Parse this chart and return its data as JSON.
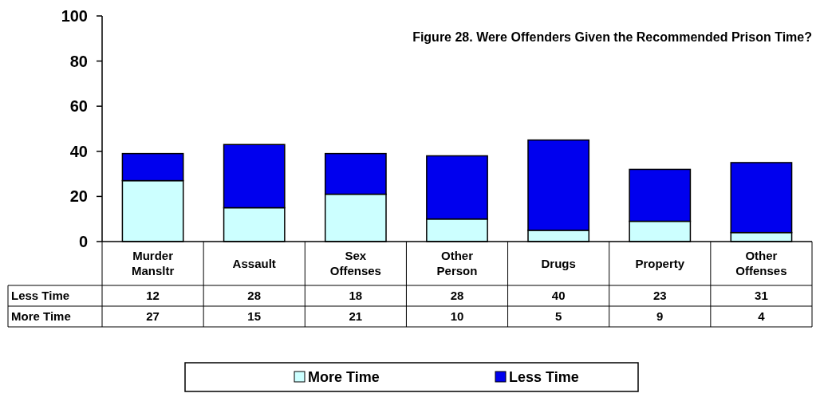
{
  "chart_data": {
    "type": "bar",
    "stacked": true,
    "title": "Figure 28.  Were Offenders Given the Recommended Prison Time?",
    "categories": [
      "Murder Mansltr",
      "Assault",
      "Sex Offenses",
      "Other Person",
      "Drugs",
      "Property",
      "Other Offenses"
    ],
    "series": [
      {
        "name": "More Time",
        "color": "#ccffff",
        "values": [
          27,
          15,
          21,
          10,
          5,
          9,
          4
        ]
      },
      {
        "name": "Less Time",
        "color": "#0000ee",
        "values": [
          12,
          28,
          18,
          28,
          40,
          23,
          31
        ]
      }
    ],
    "ylim": [
      0,
      100
    ],
    "yticks": [
      0,
      20,
      40,
      60,
      80,
      100
    ],
    "data_labels": true,
    "legend": "bottom",
    "grid": false
  }
}
